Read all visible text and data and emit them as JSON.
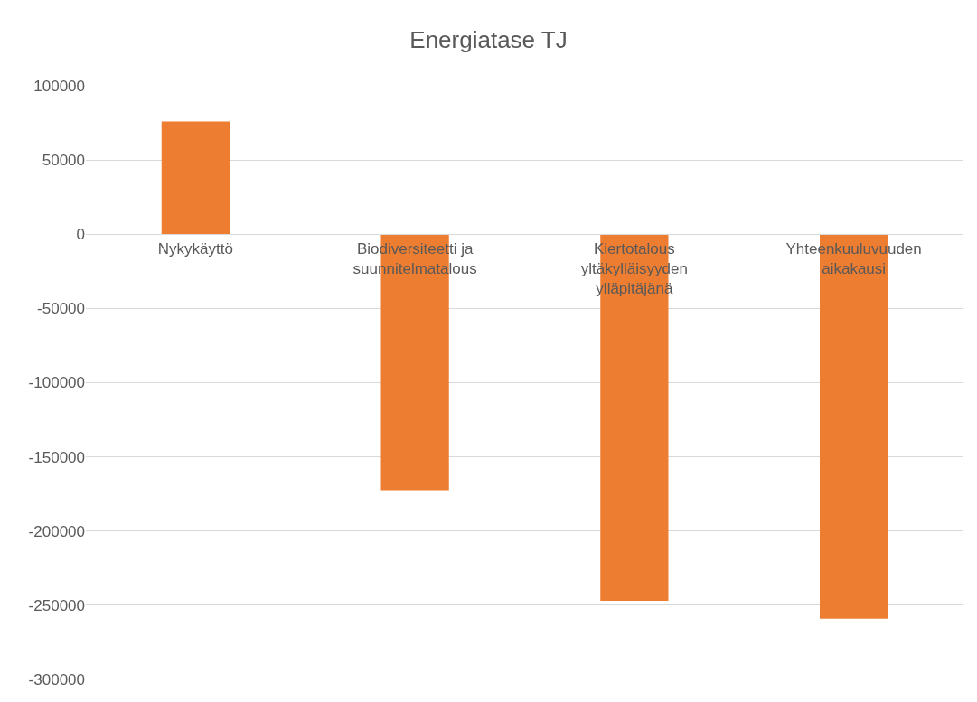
{
  "chart_data": {
    "type": "bar",
    "title": "Energiatase TJ",
    "categories": [
      "Nykykäyttö",
      "Biodiversiteetti ja suunnitelmatalous",
      "Kiertotalous yltäkylläisyyden ylläpitäjänä",
      "Yhteenkuuluvuuden aikakausi"
    ],
    "values": [
      76000,
      -172500,
      -247000,
      -259000
    ],
    "color": "#ed7d31",
    "ylim": [
      -300000,
      100000
    ],
    "yticks": [
      -300000,
      -250000,
      -200000,
      -150000,
      -100000,
      -50000,
      0,
      50000,
      100000
    ],
    "grid": "y"
  }
}
